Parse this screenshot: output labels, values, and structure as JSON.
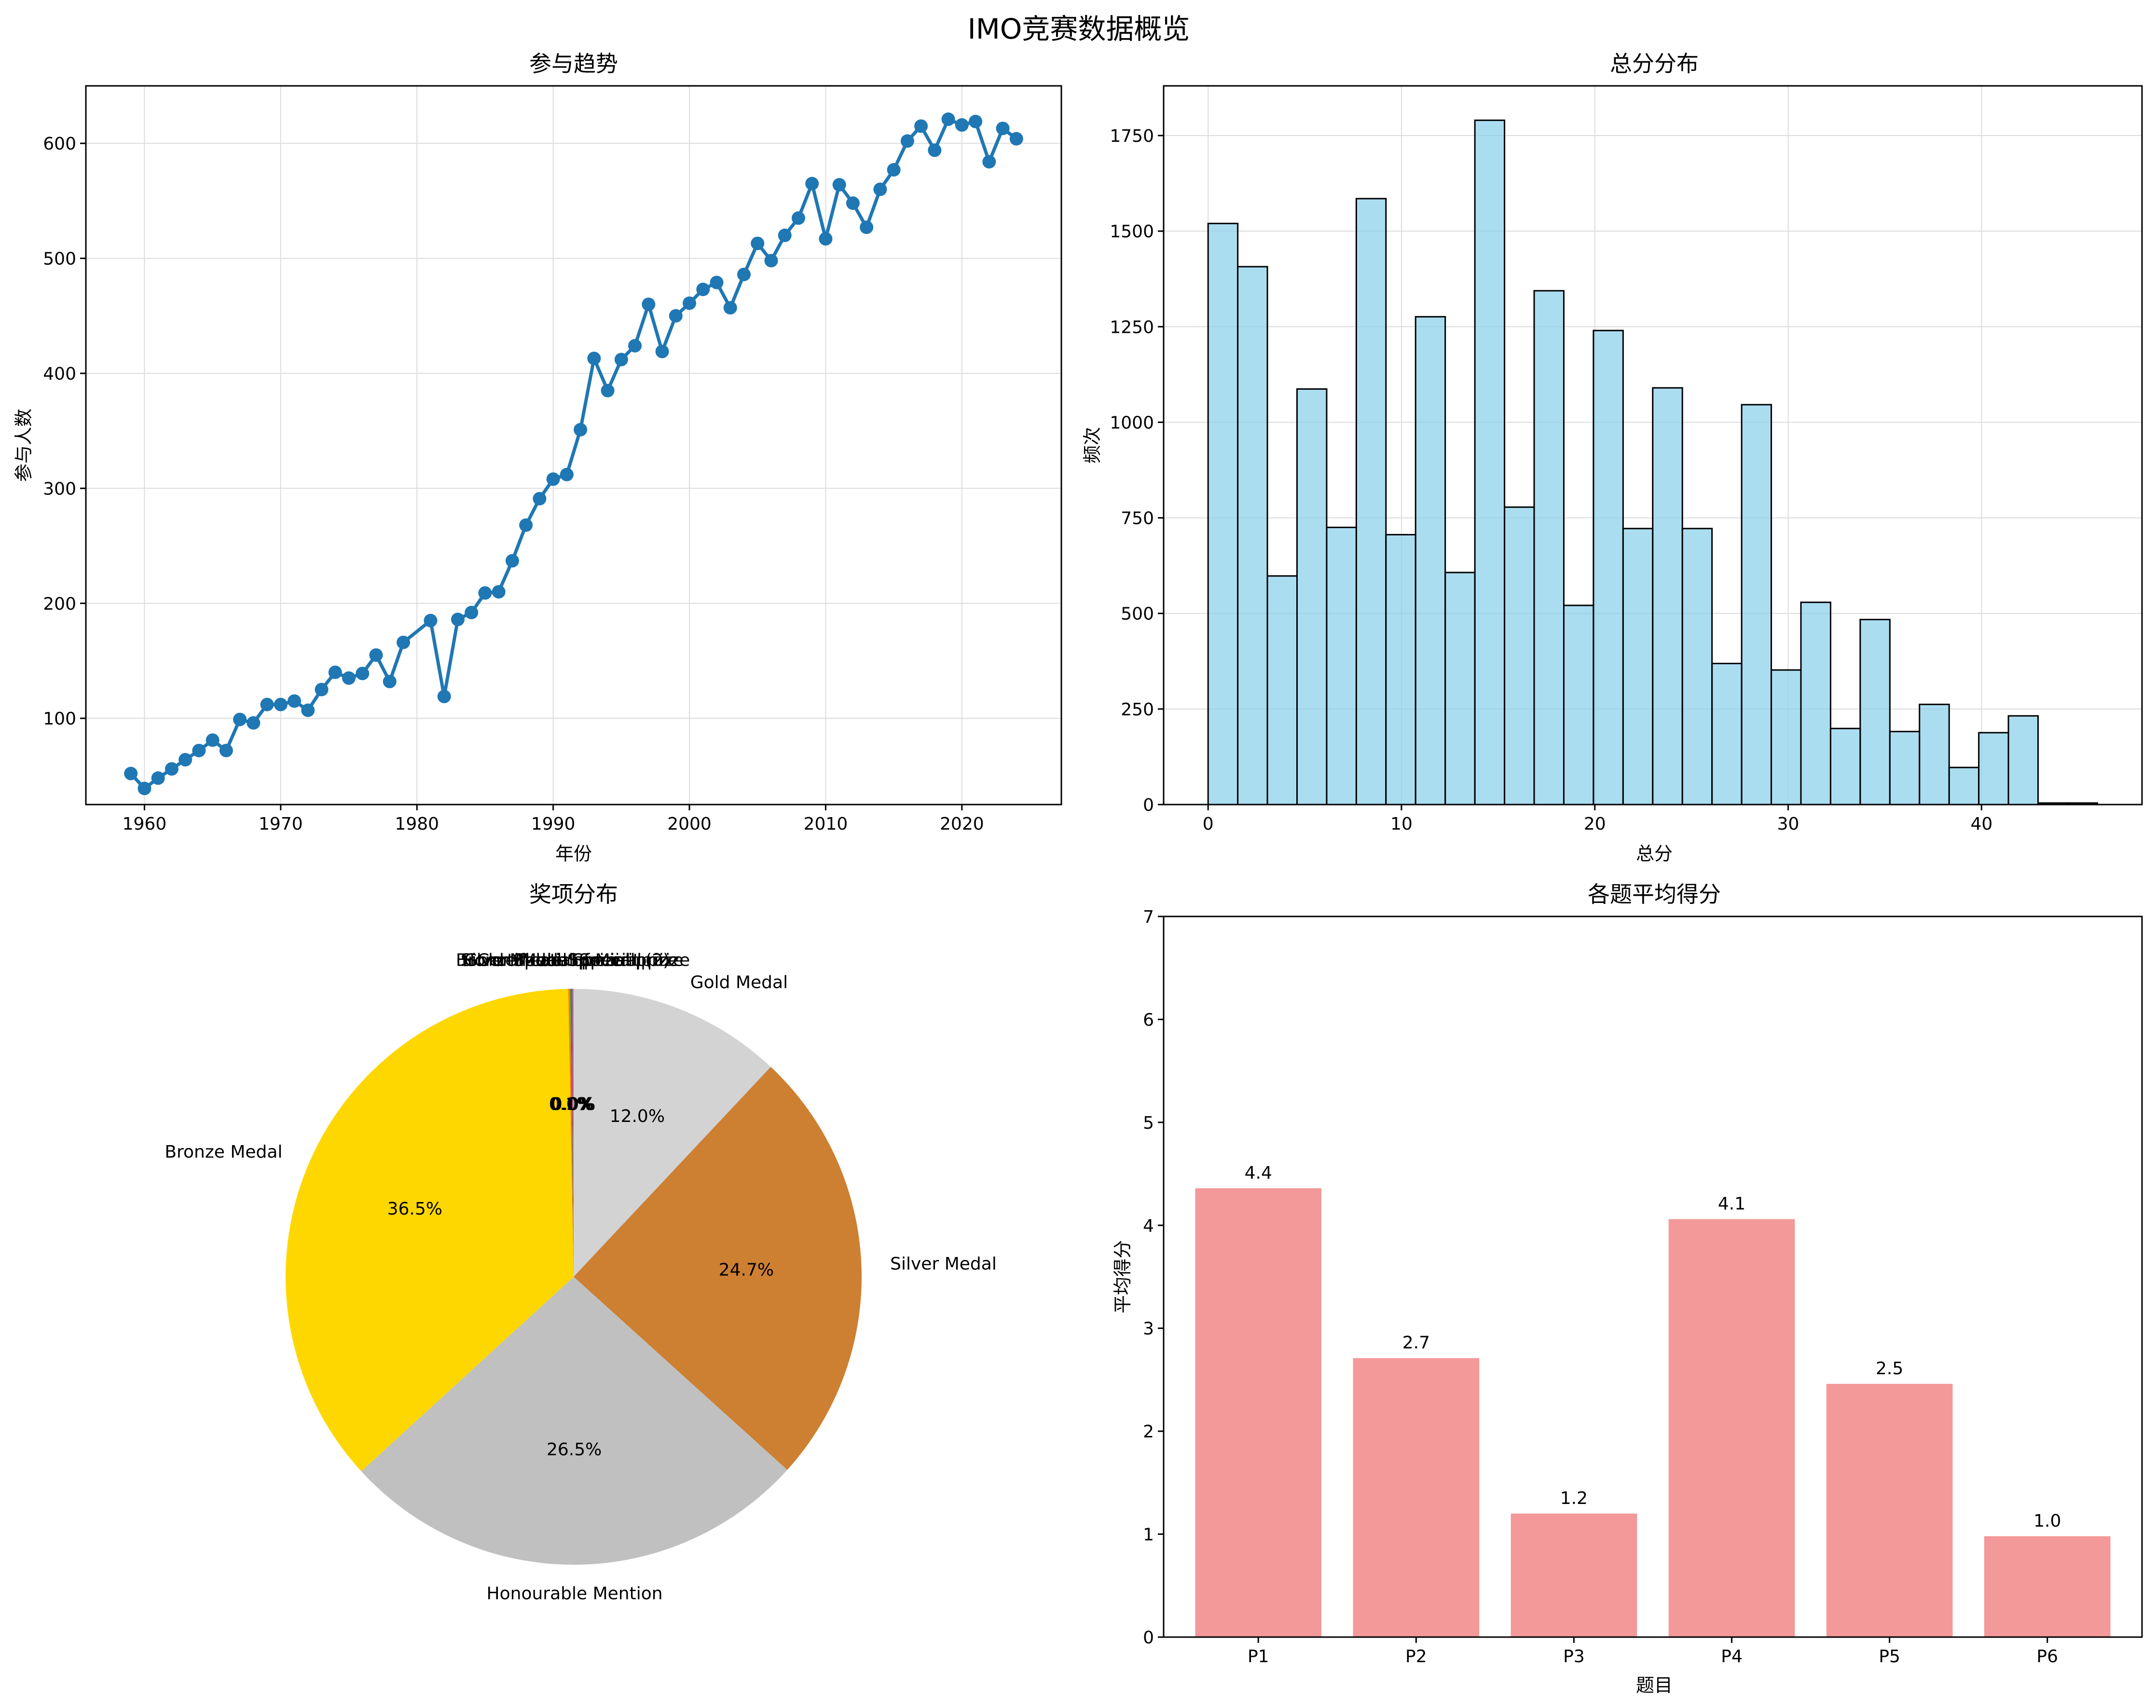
{
  "title": "IMO竞赛数据概览",
  "chart_data": [
    {
      "type": "line",
      "title": "参与趋势",
      "xlabel": "年份",
      "ylabel": "参与人数",
      "xlim": [
        1955.7,
        2027.3
      ],
      "ylim": [
        25,
        650
      ],
      "xticks": [
        1960,
        1970,
        1980,
        1990,
        2000,
        2010,
        2020
      ],
      "yticks": [
        100,
        200,
        300,
        400,
        500,
        600
      ],
      "grid": true,
      "color": "#1f77b4",
      "x": [
        1959,
        1960,
        1961,
        1962,
        1963,
        1964,
        1965,
        1966,
        1967,
        1968,
        1969,
        1970,
        1971,
        1972,
        1973,
        1974,
        1975,
        1976,
        1977,
        1978,
        1979,
        1981,
        1982,
        1983,
        1984,
        1985,
        1986,
        1987,
        1988,
        1989,
        1990,
        1991,
        1992,
        1993,
        1994,
        1995,
        1996,
        1997,
        1998,
        1999,
        2000,
        2001,
        2002,
        2003,
        2004,
        2005,
        2006,
        2007,
        2008,
        2009,
        2010,
        2011,
        2012,
        2013,
        2014,
        2015,
        2016,
        2017,
        2018,
        2019,
        2020,
        2021,
        2022,
        2023,
        2024
      ],
      "y": [
        52,
        39,
        48,
        56,
        64,
        72,
        81,
        72,
        99,
        96,
        112,
        112,
        115,
        107,
        125,
        140,
        135,
        139,
        155,
        132,
        166,
        185,
        119,
        186,
        192,
        209,
        210,
        237,
        268,
        291,
        308,
        312,
        351,
        413,
        385,
        412,
        424,
        460,
        419,
        450,
        461,
        473,
        479,
        457,
        486,
        513,
        498,
        520,
        535,
        565,
        517,
        564,
        548,
        527,
        560,
        577,
        602,
        615,
        594,
        621,
        616,
        619,
        584,
        613,
        604
      ]
    },
    {
      "type": "bar",
      "subtype": "histogram",
      "title": "总分分布",
      "xlabel": "总分",
      "ylabel": "频次",
      "xlim": [
        -2.3,
        48.3
      ],
      "ylim": [
        0,
        1880
      ],
      "xticks": [
        0,
        10,
        20,
        30,
        40
      ],
      "yticks": [
        0,
        250,
        500,
        750,
        1000,
        1250,
        1500,
        1750
      ],
      "grid": true,
      "color": "#87ceeb",
      "bin_width": 1.533,
      "bin_start": 0,
      "values": [
        1520,
        1407,
        598,
        1087,
        725,
        1585,
        706,
        1276,
        607,
        1790,
        778,
        1344,
        521,
        1240,
        722,
        1090,
        722,
        369,
        1046,
        352,
        529,
        199,
        484,
        191,
        262,
        97,
        188,
        232,
        4,
        4
      ]
    },
    {
      "type": "pie",
      "title": "奖项分布",
      "labels": [
        "Gold Medal",
        "Silver Medal",
        "Honourable Mention",
        "Bronze Medal",
        "Special prize",
        "Honourable Special prize",
        "Gold Medal Special prize",
        "Silver Medal Special prize",
        "Bronze Medal Special prize",
        "Certificate of Merit (2)"
      ],
      "values": [
        12.0,
        24.7,
        26.5,
        36.5,
        0.1,
        0.05,
        0.05,
        0.05,
        0.03,
        0.02
      ],
      "pct_labels": [
        "12.0%",
        "24.7%",
        "26.5%",
        "36.5%",
        "0.1%",
        "0.0%",
        "0.0%",
        "0.0%",
        "0.0%",
        "0.0%"
      ],
      "colors": [
        "#d3d3d3",
        "#cd7f32",
        "#c0c0c0",
        "#ffd700",
        "#ff7f0e",
        "#2ca02c",
        "#d62728",
        "#9467bd",
        "#8c564b",
        "#e377c2"
      ],
      "startangle": 90,
      "counterclock": false
    },
    {
      "type": "bar",
      "title": "各题平均得分",
      "xlabel": "题目",
      "ylabel": "平均得分",
      "categories": [
        "P1",
        "P2",
        "P3",
        "P4",
        "P5",
        "P6"
      ],
      "values": [
        4.36,
        2.71,
        1.2,
        4.06,
        2.46,
        0.98
      ],
      "value_labels": [
        "4.4",
        "2.7",
        "1.2",
        "4.1",
        "2.5",
        "1.0"
      ],
      "ylim": [
        0,
        7
      ],
      "yticks": [
        0,
        1,
        2,
        3,
        4,
        5,
        6,
        7
      ],
      "grid": false,
      "color": "#f08080"
    }
  ]
}
